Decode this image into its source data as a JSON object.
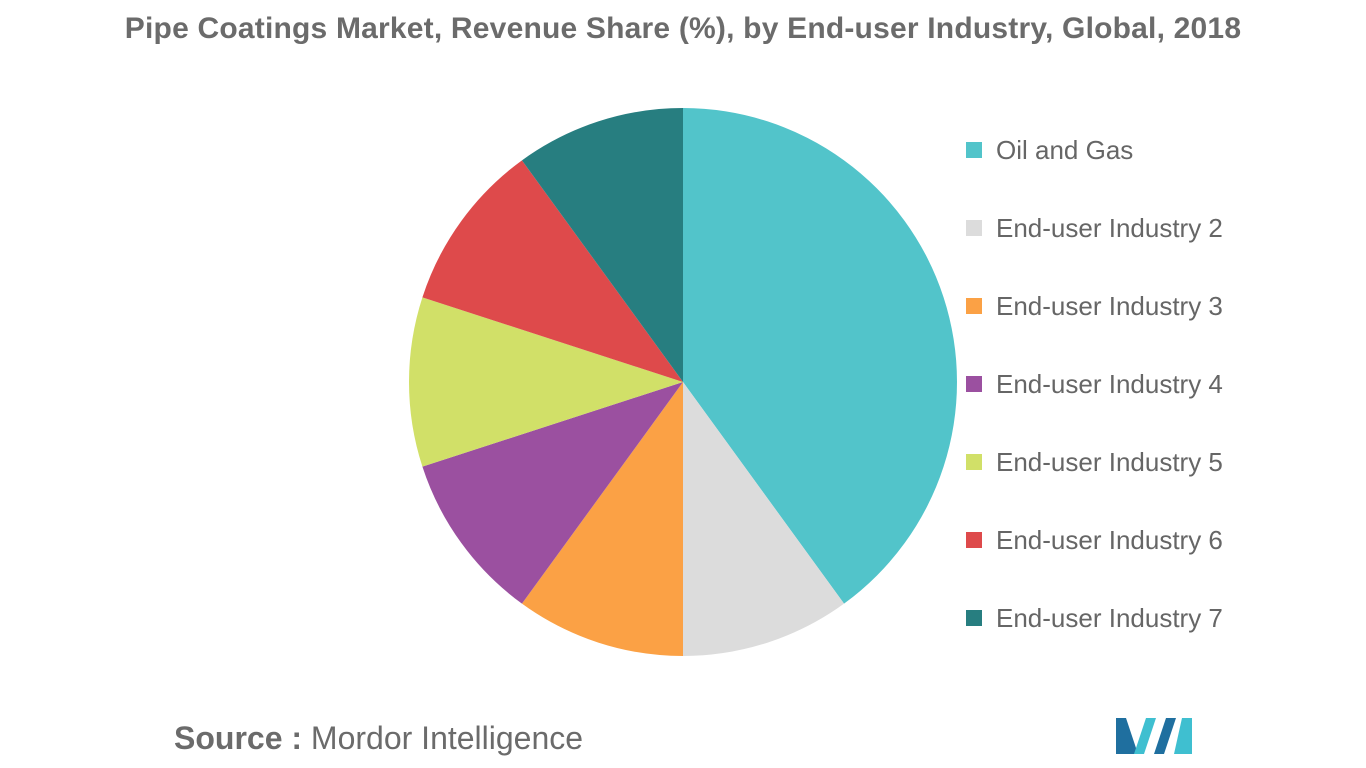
{
  "chart_data": {
    "type": "pie",
    "title": "Pipe Coatings Market, Revenue Share (%), by End-user Industry, Global, 2018",
    "categories": [
      "Oil and Gas",
      "End-user Industry 2",
      "End-user Industry 3",
      "End-user Industry 4",
      "End-user Industry 5",
      "End-user Industry 6",
      "End-user Industry 7"
    ],
    "values": [
      40,
      10,
      10,
      10,
      10,
      10,
      10
    ],
    "colors": [
      "#52c4ca",
      "#dcdcdc",
      "#fba145",
      "#9b50a0",
      "#d1e068",
      "#de4a4b",
      "#277e80"
    ],
    "legend_position": "right"
  },
  "source": {
    "label": "Source :",
    "text": "Mordor Intelligence"
  },
  "logo": {
    "colors": [
      "#1f6f9f",
      "#3fbfd0"
    ]
  }
}
